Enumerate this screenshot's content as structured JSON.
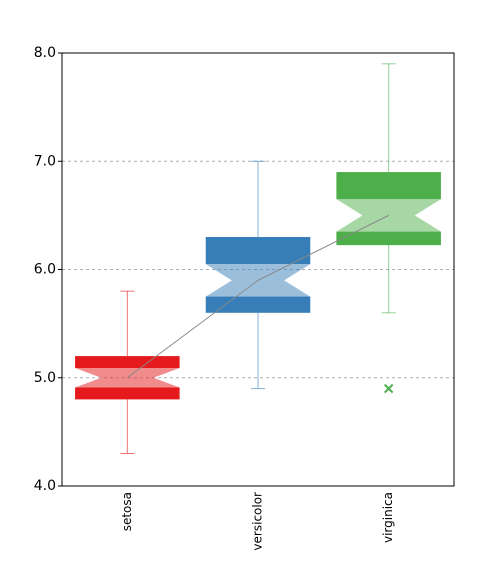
{
  "chart_data": {
    "type": "box",
    "categories": [
      "setosa",
      "versicolor",
      "virginica"
    ],
    "colors": [
      "#e41a1c",
      "#377eb8",
      "#4daf4a"
    ],
    "boxes": [
      {
        "whisker_low": 4.3,
        "q1": 4.8,
        "notch_low": 4.91,
        "median": 5.0,
        "notch_high": 5.09,
        "q3": 5.2,
        "whisker_high": 5.8,
        "outliers": []
      },
      {
        "whisker_low": 4.9,
        "q1": 5.6,
        "notch_low": 5.75,
        "median": 5.9,
        "notch_high": 6.05,
        "q3": 6.3,
        "whisker_high": 7.0,
        "outliers": []
      },
      {
        "whisker_low": 5.6,
        "q1": 6.225,
        "notch_low": 6.35,
        "median": 6.5,
        "notch_high": 6.65,
        "q3": 6.9,
        "whisker_high": 7.9,
        "outliers": [
          4.9
        ]
      }
    ],
    "ylim": [
      4.0,
      8.0
    ],
    "yticks": [
      {
        "value": 4,
        "label": "4.0"
      },
      {
        "value": 5,
        "label": "5.0"
      },
      {
        "value": 6,
        "label": "6.0"
      },
      {
        "value": 7,
        "label": "7.0"
      },
      {
        "value": 8,
        "label": "8.0"
      }
    ],
    "grid": true
  }
}
